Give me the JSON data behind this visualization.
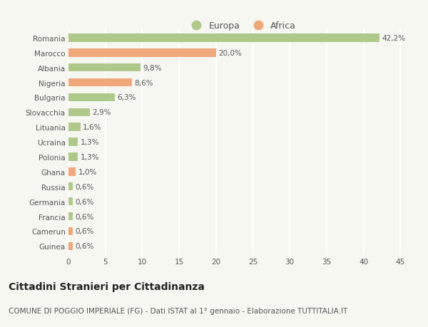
{
  "categories": [
    "Romania",
    "Marocco",
    "Albania",
    "Nigeria",
    "Bulgaria",
    "Slovacchia",
    "Lituania",
    "Ucraina",
    "Polonia",
    "Ghana",
    "Russia",
    "Germania",
    "Francia",
    "Camerun",
    "Guinea"
  ],
  "values": [
    42.2,
    20.0,
    9.8,
    8.6,
    6.3,
    2.9,
    1.6,
    1.3,
    1.3,
    1.0,
    0.6,
    0.6,
    0.6,
    0.6,
    0.6
  ],
  "labels": [
    "42,2%",
    "20,0%",
    "9,8%",
    "8,6%",
    "6,3%",
    "2,9%",
    "1,6%",
    "1,3%",
    "1,3%",
    "1,0%",
    "0,6%",
    "0,6%",
    "0,6%",
    "0,6%",
    "0,6%"
  ],
  "continents": [
    "Europa",
    "Africa",
    "Europa",
    "Africa",
    "Europa",
    "Europa",
    "Europa",
    "Europa",
    "Europa",
    "Africa",
    "Europa",
    "Europa",
    "Europa",
    "Africa",
    "Africa"
  ],
  "color_europa": "#aec98a",
  "color_africa": "#f0a87a",
  "bg_color": "#f7f7f2",
  "title": "Cittadini Stranieri per Cittadinanza",
  "subtitle": "COMUNE DI POGGIO IMPERIALE (FG) - Dati ISTAT al 1° gennaio - Elaborazione TUTTITALIA.IT",
  "xlim": [
    0,
    47
  ],
  "xticks": [
    0,
    5,
    10,
    15,
    20,
    25,
    30,
    35,
    40,
    45
  ],
  "legend_europa": "Europa",
  "legend_africa": "Africa",
  "bar_height": 0.55,
  "label_fontsize": 7.5,
  "tick_fontsize": 7.5,
  "title_fontsize": 10,
  "subtitle_fontsize": 7.5,
  "grid_color": "#ffffff",
  "text_color": "#555555"
}
